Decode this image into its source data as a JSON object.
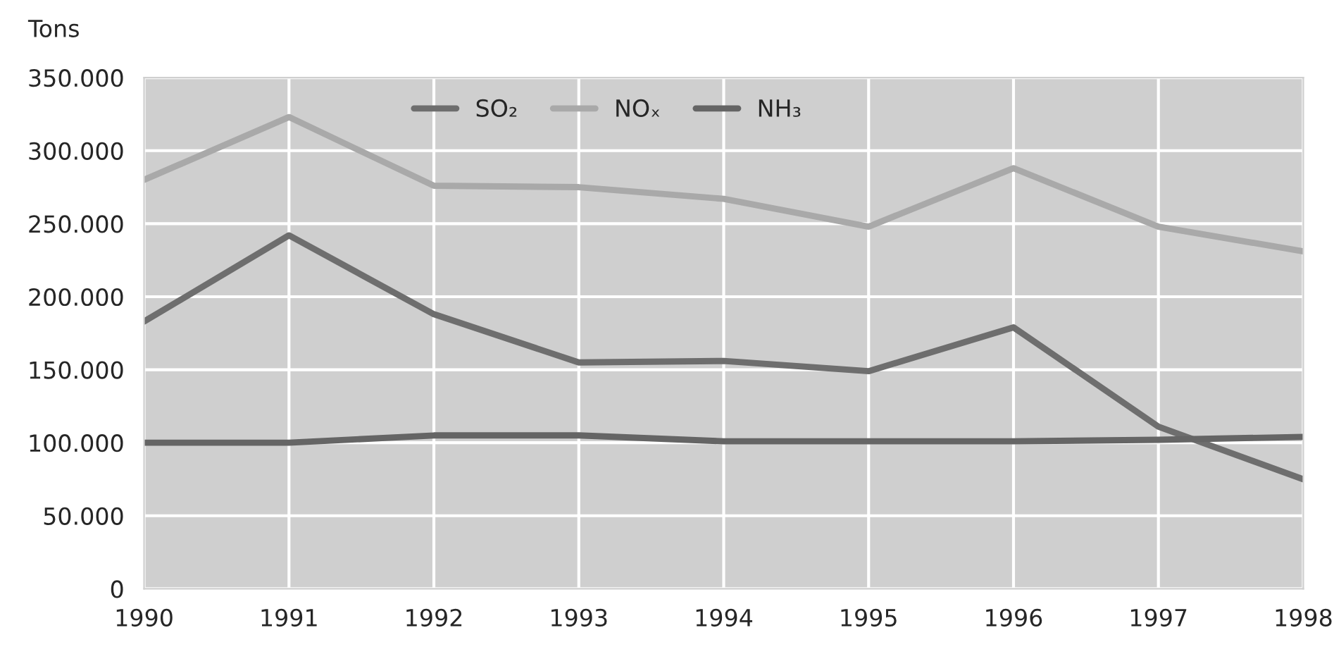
{
  "chart_data": {
    "type": "line",
    "ylabel": "Tons",
    "x": [
      1990,
      1991,
      1992,
      1993,
      1994,
      1995,
      1996,
      1997,
      1998
    ],
    "series": [
      {
        "name": "SO₂",
        "color": "#6e6e6e",
        "values": [
          183000,
          242000,
          188000,
          155000,
          156000,
          149000,
          179000,
          111000,
          75000
        ]
      },
      {
        "name": "NOₓ",
        "color": "#a9a9a9",
        "values": [
          280000,
          323000,
          276000,
          275000,
          267000,
          248000,
          288000,
          248000,
          231000
        ]
      },
      {
        "name": "NH₃",
        "color": "#656565",
        "values": [
          100000,
          100000,
          105000,
          105000,
          101000,
          101000,
          101000,
          102000,
          104000
        ]
      }
    ],
    "xlim": [
      1990,
      1998
    ],
    "xticks": [
      1990,
      1991,
      1992,
      1993,
      1994,
      1995,
      1996,
      1997,
      1998
    ],
    "ylim": [
      0,
      350000
    ],
    "yticks": [
      {
        "value": 0,
        "label": "0"
      },
      {
        "value": 50000,
        "label": "50.000"
      },
      {
        "value": 100000,
        "label": "100.000"
      },
      {
        "value": 150000,
        "label": "150.000"
      },
      {
        "value": 200000,
        "label": "200.000"
      },
      {
        "value": 250000,
        "label": "250.000"
      },
      {
        "value": 300000,
        "label": "300.000"
      },
      {
        "value": 350000,
        "label": "350.000"
      }
    ],
    "grid": true,
    "legend": "top",
    "marker": "none",
    "line_style": "solid"
  }
}
